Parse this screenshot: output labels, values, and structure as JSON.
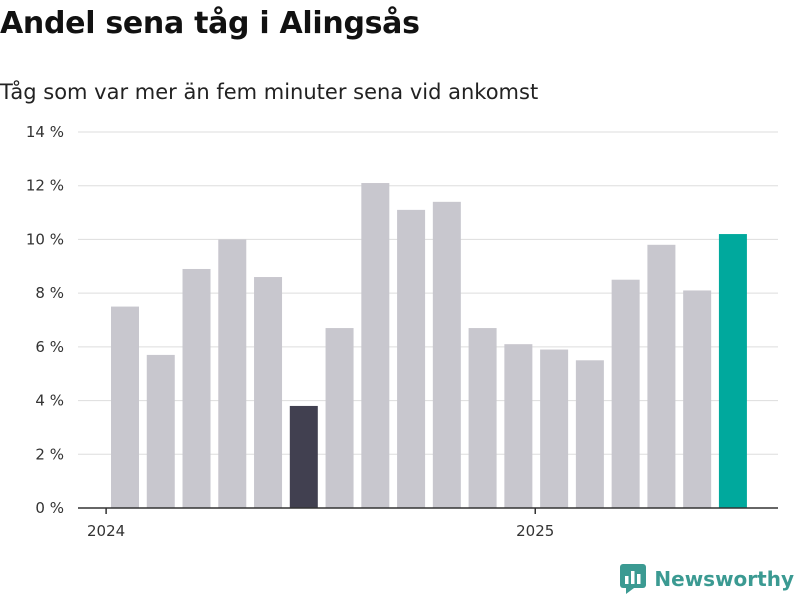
{
  "title": "Andel sena tåg i Alingsås",
  "subtitle": "Tåg som var mer än fem minuter sena vid ankomst",
  "brand": {
    "name": "Newsworthy",
    "icon": "bar-chart-speech-bubble-icon"
  },
  "colors": {
    "bar": "#c8c7ce",
    "highlight_dark": "#414050",
    "highlight_latest": "#00a99d",
    "grid": "#dddddd",
    "axis": "#333333",
    "brand": "#3b9a92"
  },
  "chart_data": {
    "type": "bar",
    "categories": [
      "2024-01",
      "2024-02",
      "2024-03",
      "2024-04",
      "2024-05",
      "2024-06",
      "2024-07",
      "2024-08",
      "2024-09",
      "2024-10",
      "2024-11",
      "2024-12",
      "2025-01",
      "2025-02",
      "2025-03",
      "2025-04",
      "2025-05",
      "2025-06"
    ],
    "values": [
      7.5,
      5.7,
      8.9,
      10.0,
      8.6,
      3.8,
      6.7,
      12.1,
      11.1,
      11.4,
      6.7,
      6.1,
      5.9,
      5.5,
      8.5,
      9.8,
      8.1,
      10.2
    ],
    "highlight": {
      "2024-06": "highlight_dark",
      "2025-06": "highlight_latest"
    },
    "x_tick_labels": [
      {
        "at": "2024-01",
        "label": "2024"
      },
      {
        "at": "2025-01",
        "label": "2025"
      }
    ],
    "y_ticks": [
      0,
      2,
      4,
      6,
      8,
      10,
      12,
      14
    ],
    "y_tick_suffix": " %",
    "ylim": [
      0,
      14
    ],
    "grid": true,
    "legend": false
  }
}
